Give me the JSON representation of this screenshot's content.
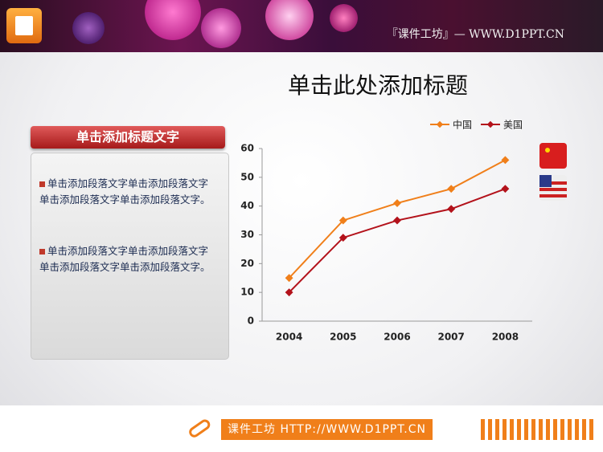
{
  "header": {
    "site_text": "『课件工坊』— WWW.D1PPT.CN"
  },
  "title": "单击此处添加标题",
  "panel": {
    "heading": "单击添加标题文字",
    "paragraphs": [
      "单击添加段落文字单击添加段落文字单击添加段落文字单击添加段落文字。",
      "单击添加段落文字单击添加段落文字单击添加段落文字单击添加段落文字。"
    ]
  },
  "chart_data": {
    "type": "line",
    "categories": [
      "2004",
      "2005",
      "2006",
      "2007",
      "2008"
    ],
    "series": [
      {
        "name": "中国",
        "color": "#f07f1a",
        "values": [
          15,
          35,
          41,
          46,
          56
        ]
      },
      {
        "name": "美国",
        "color": "#b3121b",
        "values": [
          10,
          29,
          35,
          39,
          46
        ]
      }
    ],
    "ylim": [
      0,
      60
    ],
    "yticks": [
      0,
      10,
      20,
      30,
      40,
      50,
      60
    ],
    "grid": false,
    "legend": "top"
  },
  "footer": {
    "text": "课件工坊 HTTP://WWW.D1PPT.CN"
  }
}
